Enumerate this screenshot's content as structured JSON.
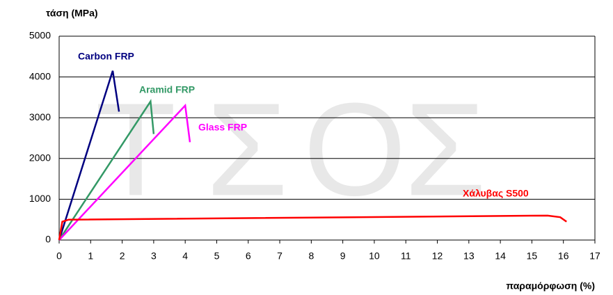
{
  "chart_data": {
    "type": "line",
    "title": "τάση (MPa)",
    "x_label": "παραμόρφωση (%)",
    "watermark": [
      "Τ",
      "Σ",
      "Ο",
      "Σ"
    ],
    "xlim": [
      0,
      17
    ],
    "xticks": [
      0,
      1,
      2,
      3,
      4,
      5,
      6,
      7,
      8,
      9,
      10,
      11,
      12,
      13,
      14,
      15,
      16,
      17
    ],
    "ylim": [
      0,
      5000
    ],
    "yticks": [
      0,
      1000,
      2000,
      3000,
      4000,
      5000
    ],
    "grid": true,
    "series": [
      {
        "name": "Carbon FRP",
        "color": "#000080",
        "x": [
          0,
          1.7,
          1.9
        ],
        "values": [
          0,
          4150,
          3150
        ]
      },
      {
        "name": "Aramid FRP",
        "color": "#339966",
        "x": [
          0,
          2.9,
          3.0
        ],
        "values": [
          0,
          3400,
          2600
        ]
      },
      {
        "name": "Glass FRP",
        "color": "#ff00ff",
        "x": [
          0,
          4.0,
          4.15
        ],
        "values": [
          0,
          3300,
          2400
        ]
      },
      {
        "name": "Χάλυβας S500",
        "color": "#ff0000",
        "x": [
          0,
          0.1,
          0.3,
          15.5,
          15.9,
          16.1
        ],
        "values": [
          0,
          450,
          500,
          600,
          560,
          450
        ]
      }
    ]
  }
}
